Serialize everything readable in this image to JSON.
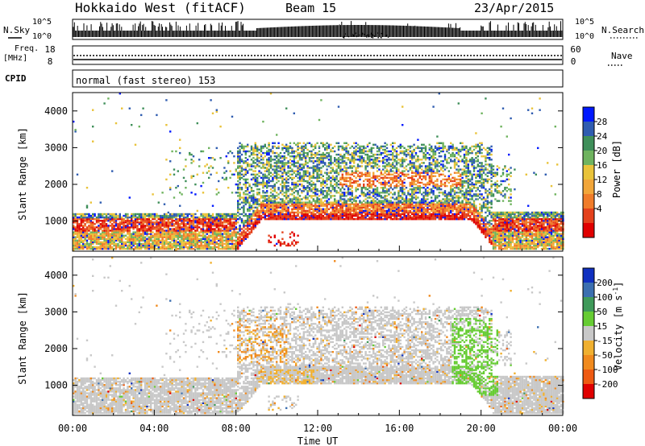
{
  "header": {
    "station": "Hokkaido West (fitACF)",
    "beam": "Beam 15",
    "date": "23/Apr/2015"
  },
  "top_panels": {
    "nsky_label": "N.Sky",
    "nsearch_label": "N.Search",
    "noise_ticks_left": [
      "10^5",
      "10^0"
    ],
    "noise_ticks_right": [
      "10^5",
      "10^0"
    ],
    "freq_label_1": "Freq.",
    "freq_label_2": "[MHz]",
    "freq_ticks": [
      "18",
      "8"
    ],
    "nave_ticks": [
      "60",
      "0"
    ],
    "nave_label": "Nave",
    "cpid_label": "CPID",
    "cpid_text": "normal (fast stereo) 153"
  },
  "chart_data": [
    {
      "type": "heatmap",
      "name": "power",
      "ylabel": "Slant Range [km]",
      "yticks": [
        "1000",
        "2000",
        "3000",
        "4000"
      ],
      "ylim": [
        180,
        4500
      ],
      "colorbar": {
        "label": "Power [dB]",
        "ticks": [
          "4",
          "8",
          "12",
          "16",
          "20",
          "24",
          "28"
        ],
        "colors": [
          "#0018ff",
          "#2f5cb0",
          "#3f8f5a",
          "#6fb35f",
          "#e9c33a",
          "#f2a63a",
          "#f07c2a",
          "#e4411c",
          "#e00000"
        ]
      }
    },
    {
      "type": "heatmap",
      "name": "velocity",
      "ylabel": "Slant Range [km]",
      "yticks": [
        "1000",
        "2000",
        "3000",
        "4000"
      ],
      "ylim": [
        180,
        4500
      ],
      "xlabel": "Time UT",
      "xticks": [
        "00:00",
        "04:00",
        "08:00",
        "12:00",
        "16:00",
        "20:00",
        "00:00"
      ],
      "colorbar": {
        "label_pre": "Velocity [m s",
        "label_sup": "-1",
        "label_post": "]",
        "ticks": [
          "200",
          "100",
          "50",
          "15",
          "-15",
          "-50",
          "-100",
          "-200"
        ],
        "colors": [
          "#1030c0",
          "#3b6fb0",
          "#3f9a5a",
          "#66cc33",
          "#c8c8c8",
          "#f0b030",
          "#f08a1e",
          "#ee5a12",
          "#e00000"
        ]
      }
    }
  ]
}
